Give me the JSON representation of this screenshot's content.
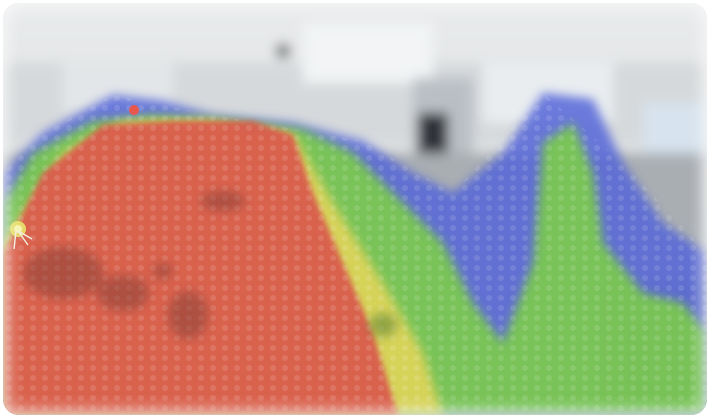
{
  "view": {
    "type": "camera-feed-with-heatmap-overlay",
    "overlay": "traversability-heatmap",
    "legend": []
  },
  "colors": {
    "floor_high": "#d9574a",
    "mid": "#7fd54b",
    "low": "#4a5bd6",
    "ceiling": "#e8eaeb",
    "wall": "#c7cbcd",
    "window": "#c9d6e3",
    "marker": "#e9e36a"
  },
  "icons": {
    "robot_marker": "position-marker-icon"
  }
}
